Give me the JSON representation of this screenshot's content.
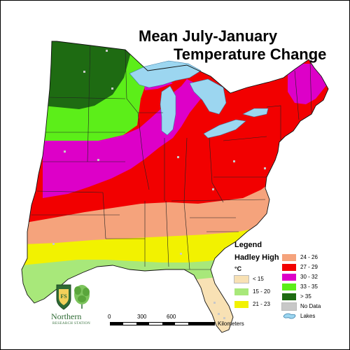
{
  "title": {
    "line1": "Mean July-January",
    "line2": "Temperature Change"
  },
  "legend": {
    "title": "Legend",
    "subtitle": "Hadley High",
    "unit": "°C",
    "items": [
      {
        "label": "< 15",
        "color": "#f8e1b4"
      },
      {
        "label": "15 - 20",
        "color": "#a8e87a"
      },
      {
        "label": "21 - 23",
        "color": "#f2f200"
      },
      {
        "label": "24 - 26",
        "color": "#f5a37c"
      },
      {
        "label": "27 - 29",
        "color": "#f20000"
      },
      {
        "label": "30 - 32",
        "color": "#dd00c8"
      },
      {
        "label": "33 - 35",
        "color": "#5cee19"
      },
      {
        "label": "> 35",
        "color": "#1e6b12"
      },
      {
        "label": "No Data",
        "color": "#c8c8c8"
      },
      {
        "label": "Lakes",
        "color": "#9cd6f0"
      }
    ]
  },
  "scale": {
    "ticks": [
      "0",
      "300",
      "600"
    ],
    "unit": "Kilometers"
  },
  "logo": {
    "name": "Northern",
    "sub": "RESEARCH STATION",
    "shield_text": "FS"
  }
}
